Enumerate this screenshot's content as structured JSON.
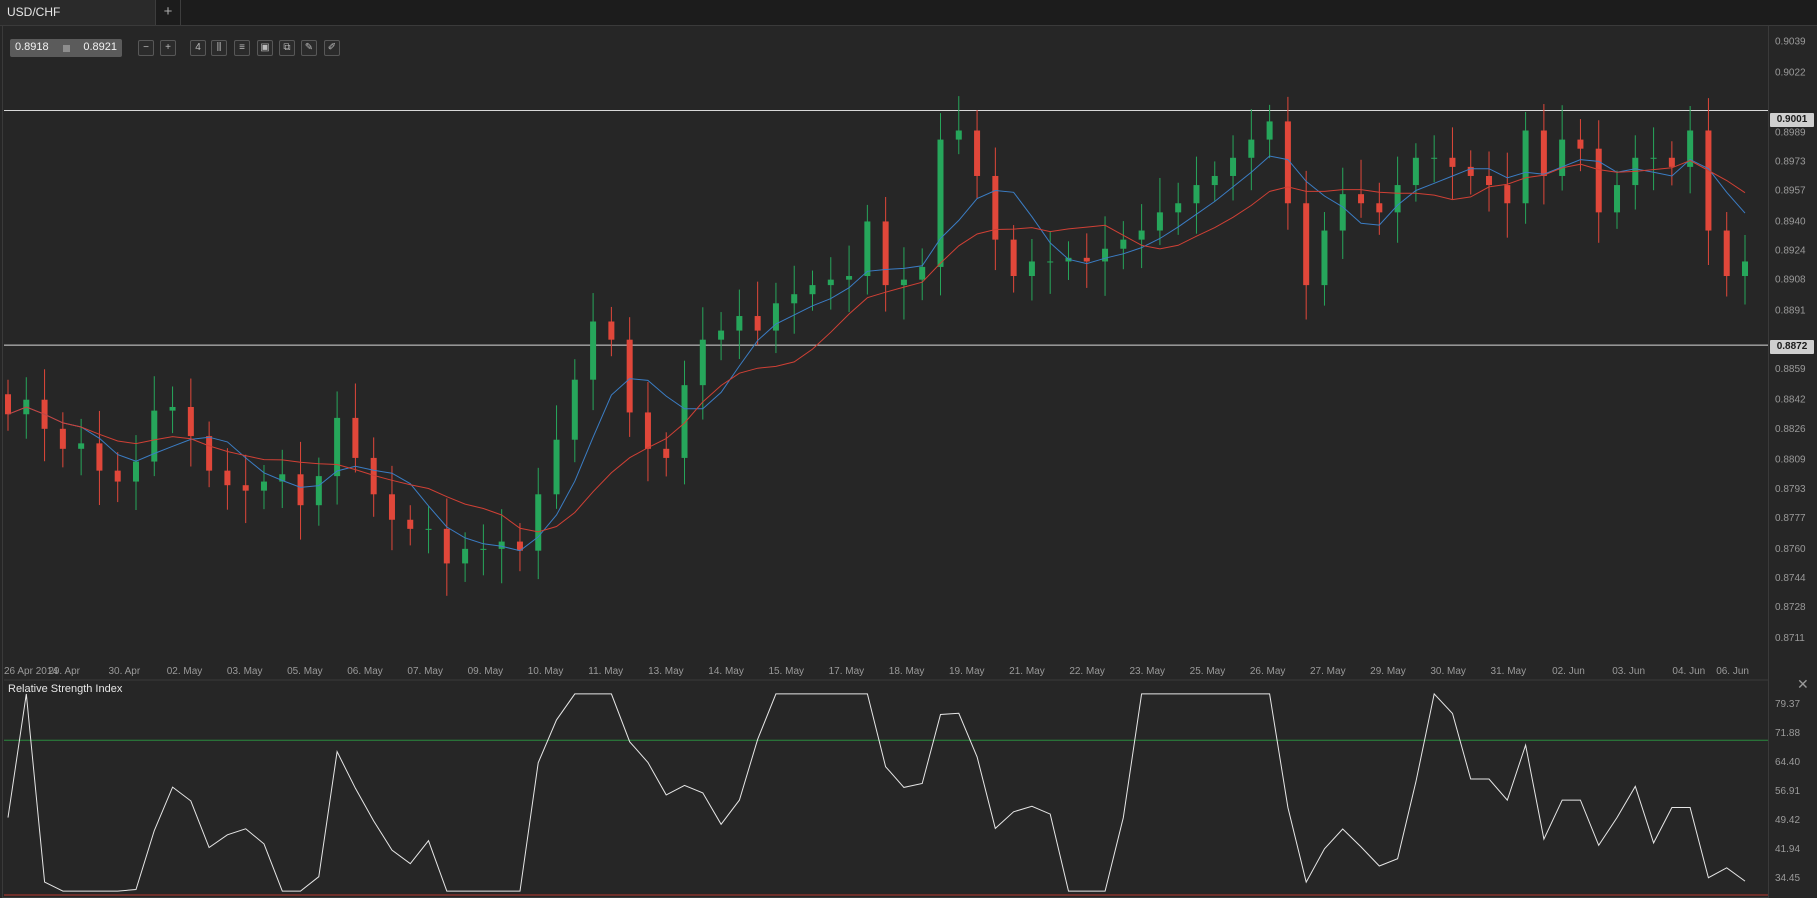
{
  "tab": {
    "title": "USD/CHF",
    "add": "+"
  },
  "quote": {
    "bid": "0.8918",
    "ask": "0.8921"
  },
  "toolbar": {
    "buttons": [
      {
        "name": "zoom-out-icon",
        "glyph": "−"
      },
      {
        "name": "zoom-in-icon",
        "glyph": "+"
      },
      {
        "name": "timeframe-button",
        "glyph": "4"
      },
      {
        "name": "chart-type-icon",
        "glyph": "⫼"
      },
      {
        "name": "indicators-icon",
        "glyph": "≡"
      },
      {
        "name": "templates-icon",
        "glyph": "▣"
      },
      {
        "name": "objects-icon",
        "glyph": "⧉"
      },
      {
        "name": "draw-icon",
        "glyph": "✎"
      },
      {
        "name": "settings-icon",
        "glyph": "✐"
      }
    ]
  },
  "price_axis": [
    "0.9039",
    "0.9022",
    "0.8989",
    "0.8973",
    "0.8957",
    "0.8940",
    "0.8924",
    "0.8908",
    "0.8891",
    "0.8859",
    "0.8842",
    "0.8826",
    "0.8809",
    "0.8793",
    "0.8777",
    "0.8760",
    "0.8744",
    "0.8728",
    "0.8711"
  ],
  "levels": {
    "upper": "0.9001",
    "lower": "0.8872"
  },
  "date_axis": [
    "26 Apr 2014",
    "29. Apr",
    "30. Apr",
    "02. May",
    "03. May",
    "05. May",
    "06. May",
    "07. May",
    "09. May",
    "10. May",
    "11. May",
    "13. May",
    "14. May",
    "15. May",
    "17. May",
    "18. May",
    "19. May",
    "21. May",
    "22. May",
    "23. May",
    "25. May",
    "26. May",
    "27. May",
    "29. May",
    "30. May",
    "31. May",
    "02. Jun",
    "03. Jun",
    "04. Jun",
    "06. Jun"
  ],
  "rsi": {
    "title": "Relative Strength Index",
    "axis": [
      "79.37",
      "71.88",
      "64.40",
      "56.91",
      "49.42",
      "41.94",
      "34.45"
    ],
    "overbought": 70,
    "oversold": 30
  },
  "colors": {
    "bull": "#26a65b",
    "bear": "#e0473a",
    "ma_fast": "#3b7dc4",
    "ma_slow": "#d04035",
    "rsi_line": "#e6e6e6",
    "level_line": "#d8d8d8"
  },
  "chart_data": {
    "type": "candlestick",
    "symbol": "USD/CHF",
    "ylim": [
      0.87,
      0.9048
    ],
    "close": [
      0.8834,
      0.8842,
      0.8826,
      0.8815,
      0.8818,
      0.8803,
      0.8797,
      0.8808,
      0.8836,
      0.8838,
      0.8822,
      0.8803,
      0.8795,
      0.8792,
      0.8797,
      0.8801,
      0.8784,
      0.88,
      0.8832,
      0.881,
      0.879,
      0.8776,
      0.8771,
      0.8771,
      0.8752,
      0.876,
      0.876,
      0.8764,
      0.8759,
      0.879,
      0.882,
      0.8853,
      0.8885,
      0.8875,
      0.8835,
      0.8815,
      0.881,
      0.885,
      0.8875,
      0.888,
      0.8888,
      0.888,
      0.8895,
      0.89,
      0.8905,
      0.8908,
      0.891,
      0.894,
      0.8905,
      0.8908,
      0.8915,
      0.8985,
      0.899,
      0.8965,
      0.893,
      0.891,
      0.8918,
      0.8918,
      0.892,
      0.8918,
      0.8925,
      0.893,
      0.8935,
      0.8945,
      0.895,
      0.896,
      0.8965,
      0.8975,
      0.8985,
      0.8995,
      0.895,
      0.8905,
      0.8935,
      0.8955,
      0.895,
      0.8945,
      0.896,
      0.8975,
      0.8975,
      0.897,
      0.8965,
      0.896,
      0.895,
      0.899,
      0.8965,
      0.8985,
      0.898,
      0.8945,
      0.896,
      0.8975,
      0.8975,
      0.897,
      0.899,
      0.8935,
      0.891,
      0.8918
    ]
  }
}
